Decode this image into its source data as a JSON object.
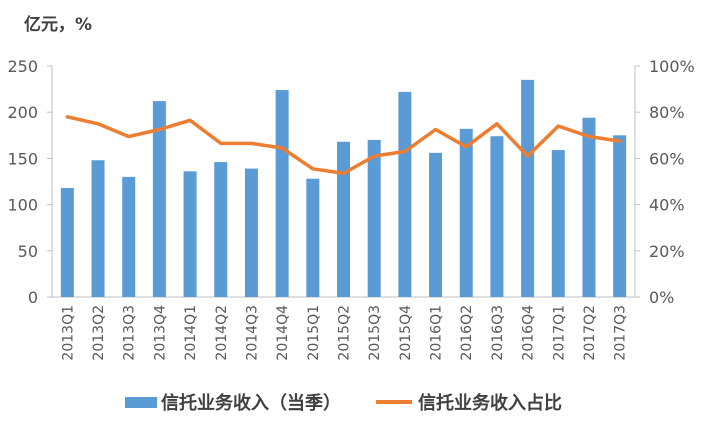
{
  "chart_data": {
    "type": "bar+line",
    "unit_label": "亿元，%",
    "categories": [
      "2013Q1",
      "2013Q2",
      "2013Q3",
      "2013Q4",
      "2014Q1",
      "2014Q2",
      "2014Q3",
      "2014Q4",
      "2015Q1",
      "2015Q2",
      "2015Q3",
      "2015Q4",
      "2016Q1",
      "2016Q2",
      "2016Q3",
      "2016Q4",
      "2017Q1",
      "2017Q2",
      "2017Q3"
    ],
    "series": [
      {
        "name": "信托业务收入（当季）",
        "type": "bar",
        "axis": "left",
        "color": "#5b9bd5",
        "values": [
          118,
          148,
          130,
          212,
          136,
          146,
          139,
          224,
          128,
          168,
          170,
          222,
          156,
          182,
          174,
          235,
          159,
          194,
          175
        ]
      },
      {
        "name": "信托业务收入占比",
        "type": "line",
        "axis": "right",
        "color": "#ed7d31",
        "values": [
          78,
          75,
          69.5,
          72.5,
          76.5,
          66.5,
          66.5,
          64.5,
          55.5,
          53.5,
          61,
          63,
          72.5,
          65,
          75,
          61,
          74,
          69.5,
          67.5
        ]
      }
    ],
    "y_left": {
      "min": 0,
      "max": 250,
      "ticks": [
        0,
        50,
        100,
        150,
        200,
        250
      ]
    },
    "y_right": {
      "min": 0,
      "max": 100,
      "ticks": [
        "0%",
        "20%",
        "40%",
        "60%",
        "80%",
        "100%"
      ]
    },
    "grid": false,
    "legend_position": "bottom"
  }
}
